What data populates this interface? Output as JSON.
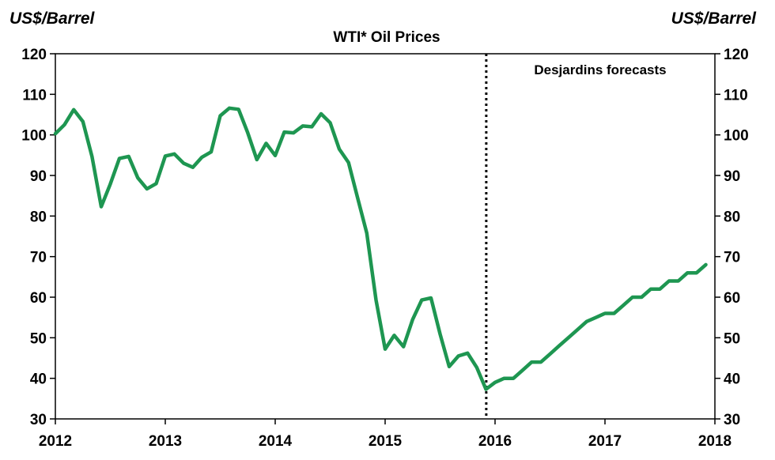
{
  "chart_data": {
    "type": "line",
    "title": "WTI* Oil Prices",
    "ylabel_left": "US$/Barrel",
    "ylabel_right": "US$/Barrel",
    "xlabel": "",
    "ylim": [
      30,
      120
    ],
    "yticks": [
      30,
      40,
      50,
      60,
      70,
      80,
      90,
      100,
      110,
      120
    ],
    "xlim": [
      2012,
      2018
    ],
    "xticks": [
      "2012",
      "2013",
      "2014",
      "2015",
      "2016",
      "2017",
      "2018"
    ],
    "forecast_start": 2015.92,
    "annotation": "Desjardins forecasts",
    "grid": false,
    "line_color": "#1e9651",
    "series": [
      {
        "x": [
          2012.0,
          2012.083,
          2012.167,
          2012.25,
          2012.333,
          2012.417,
          2012.5,
          2012.583,
          2012.667,
          2012.75,
          2012.833,
          2012.917,
          2013.0,
          2013.083,
          2013.167,
          2013.25,
          2013.333,
          2013.417,
          2013.5,
          2013.583,
          2013.667,
          2013.75,
          2013.833,
          2013.917,
          2014.0,
          2014.083,
          2014.167,
          2014.25,
          2014.333,
          2014.417,
          2014.5,
          2014.583,
          2014.667,
          2014.75,
          2014.833,
          2014.917,
          2015.0,
          2015.083,
          2015.167,
          2015.25,
          2015.333,
          2015.417,
          2015.5,
          2015.583,
          2015.667,
          2015.75,
          2015.833,
          2015.917,
          2016.0,
          2016.083,
          2016.167,
          2016.25,
          2016.333,
          2016.417,
          2016.5,
          2016.583,
          2016.667,
          2016.75,
          2016.833,
          2016.917,
          2017.0,
          2017.083,
          2017.167,
          2017.25,
          2017.333,
          2017.417,
          2017.5,
          2017.583,
          2017.667,
          2017.75,
          2017.833,
          2017.917
        ],
        "y": [
          100.3,
          102.5,
          106.2,
          103.3,
          94.7,
          82.3,
          87.9,
          94.2,
          94.7,
          89.4,
          86.7,
          88.0,
          94.8,
          95.3,
          93.0,
          92.0,
          94.5,
          95.8,
          104.7,
          106.6,
          106.3,
          100.5,
          93.9,
          97.9,
          94.9,
          100.7,
          100.5,
          102.2,
          102.0,
          105.2,
          103.0,
          96.5,
          93.2,
          84.4,
          75.8,
          59.3,
          47.2,
          50.6,
          47.8,
          54.5,
          59.3,
          59.8,
          50.9,
          42.9,
          45.5,
          46.2,
          42.7,
          37.3,
          39.0,
          40.0,
          40.0,
          42.0,
          44.0,
          44.0,
          46.0,
          48.0,
          50.0,
          52.0,
          54.0,
          55.0,
          56.0,
          56.0,
          58.0,
          60.0,
          60.0,
          62.0,
          62.0,
          64.0,
          64.0,
          66.0,
          66.0,
          68.0
        ]
      }
    ]
  }
}
